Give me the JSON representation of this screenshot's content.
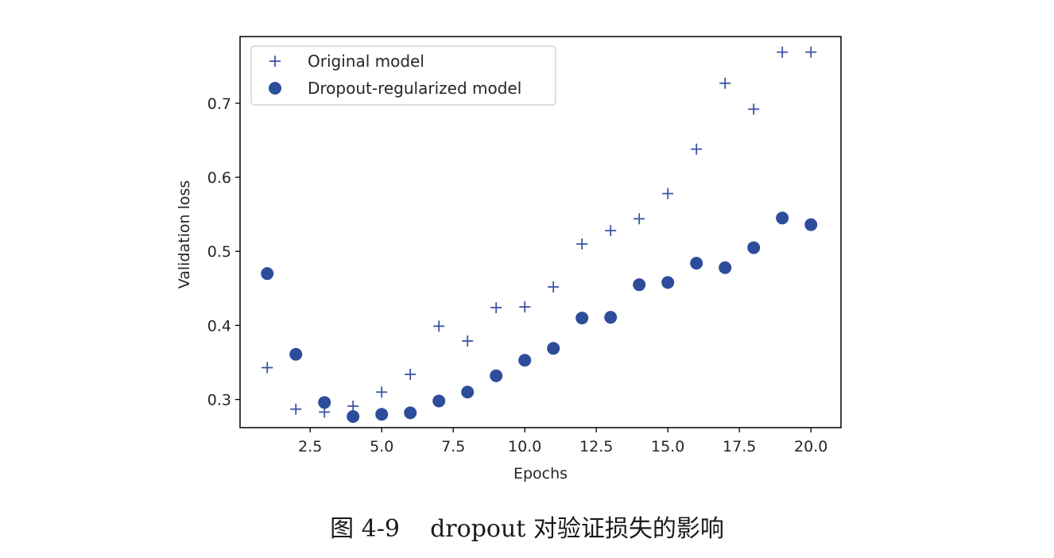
{
  "chart_data": {
    "type": "scatter",
    "xlabel": "Epochs",
    "ylabel": "Validation loss",
    "xlim": [
      0.05,
      21.05
    ],
    "ylim": [
      0.262,
      0.79
    ],
    "xticks": [
      2.5,
      5.0,
      7.5,
      10.0,
      12.5,
      15.0,
      17.5,
      20.0
    ],
    "xtick_labels": [
      "2.5",
      "5.0",
      "7.5",
      "10.0",
      "12.5",
      "15.0",
      "17.5",
      "20.0"
    ],
    "yticks": [
      0.3,
      0.4,
      0.5,
      0.6,
      0.7
    ],
    "ytick_labels": [
      "0.3",
      "0.4",
      "0.5",
      "0.6",
      "0.7"
    ],
    "grid": false,
    "legend_position": "top-left",
    "x": [
      1,
      2,
      3,
      4,
      5,
      6,
      7,
      8,
      9,
      10,
      11,
      12,
      13,
      14,
      15,
      16,
      17,
      18,
      19,
      20
    ],
    "series": [
      {
        "name": "Original model",
        "marker": "plus",
        "color": "#3a55a4",
        "values": [
          0.343,
          0.287,
          0.283,
          0.291,
          0.31,
          0.334,
          0.399,
          0.379,
          0.424,
          0.425,
          0.452,
          0.51,
          0.528,
          0.544,
          0.578,
          0.638,
          0.727,
          0.692,
          0.769,
          0.769
        ]
      },
      {
        "name": "Dropout-regularized model",
        "marker": "circle",
        "color": "#2d4d9b",
        "values": [
          0.47,
          0.361,
          0.296,
          0.277,
          0.28,
          0.282,
          0.298,
          0.31,
          0.332,
          0.353,
          0.369,
          0.41,
          0.411,
          0.455,
          0.458,
          0.484,
          0.478,
          0.505,
          0.545,
          0.536
        ]
      }
    ]
  },
  "caption": "图 4-9    dropout 对验证损失的影响"
}
